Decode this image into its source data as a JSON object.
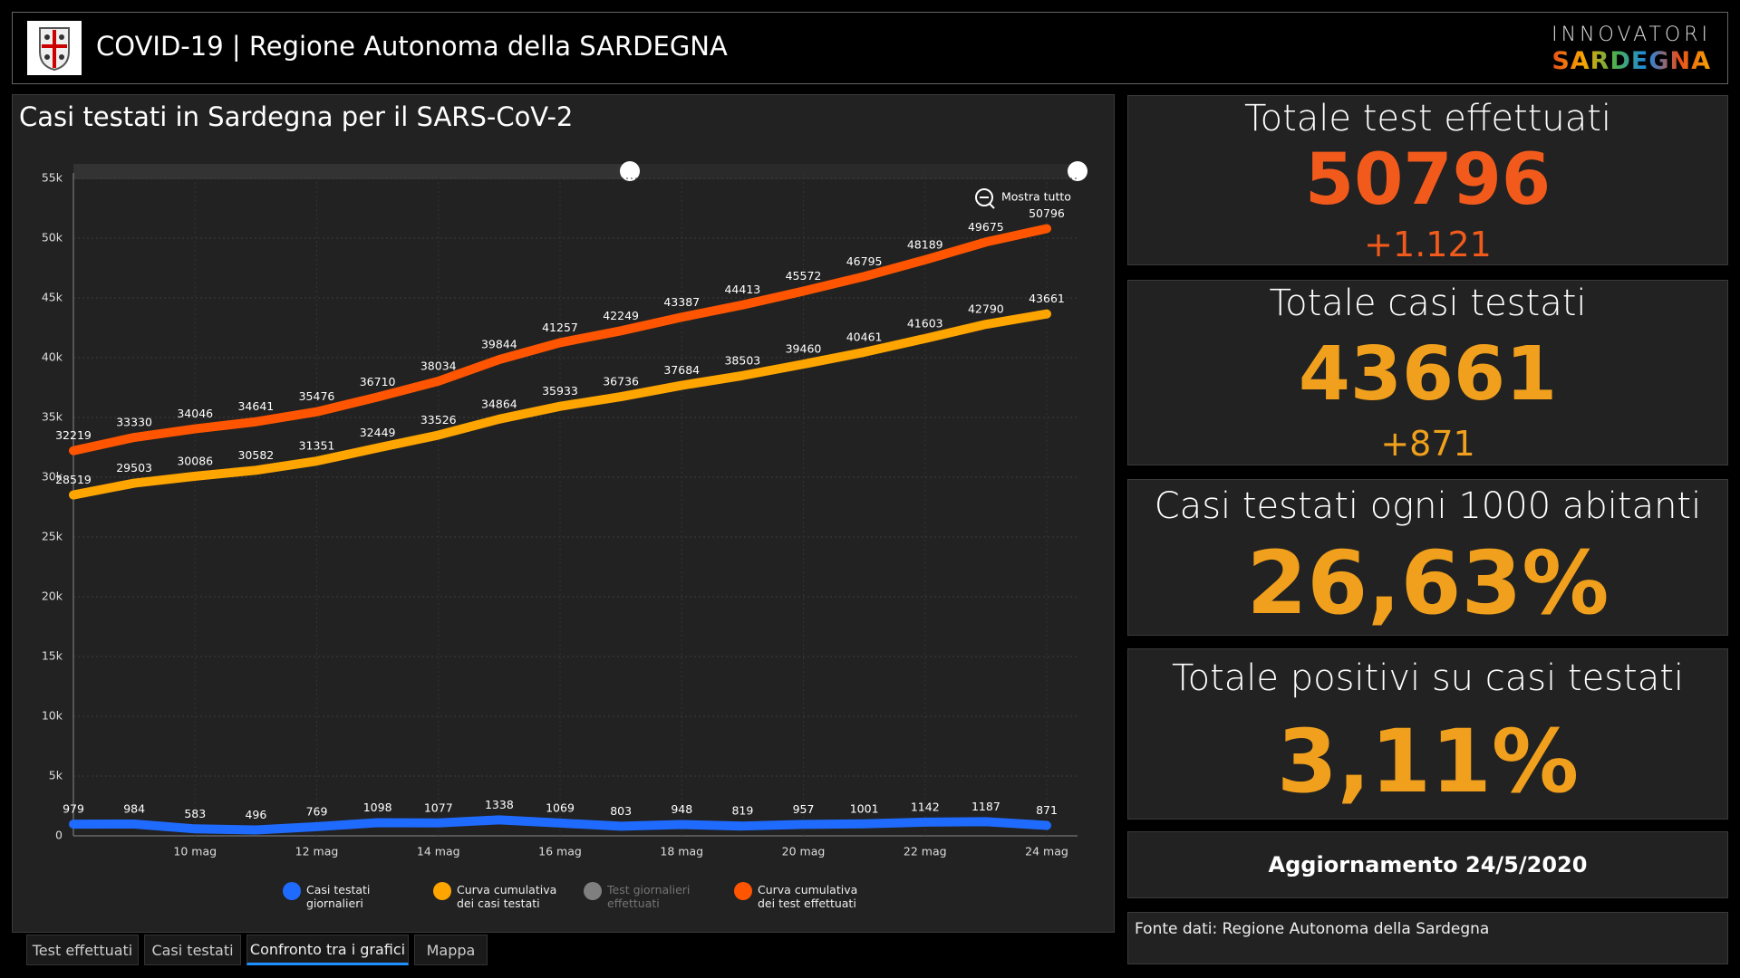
{
  "header": {
    "title": "COVID-19 | Regione Autonoma della SARDEGNA",
    "brand_top": "INNOVATORI",
    "brand_bottom": "SARDEGNA"
  },
  "chart_data": {
    "type": "line",
    "title": "Casi testati in Sardegna per il SARS-CoV-2",
    "zoom_label": "Mostra tutto",
    "categories": [
      null,
      null,
      "10 mag",
      null,
      "12 mag",
      null,
      "14 mag",
      null,
      "16 mag",
      null,
      "18 mag",
      null,
      "20 mag",
      null,
      "22 mag",
      null,
      "24 mag"
    ],
    "series": [
      {
        "name": "Casi testati giornalieri",
        "color": "#1f6bff",
        "values": [
          979,
          984,
          583,
          496,
          769,
          1098,
          1077,
          1338,
          1069,
          803,
          948,
          819,
          957,
          1001,
          1142,
          1187,
          871
        ]
      },
      {
        "name": "Curva cumulativa dei casi testati",
        "color": "#ffa500",
        "values": [
          28519,
          29503,
          30086,
          30582,
          31351,
          32449,
          33526,
          34864,
          35933,
          36736,
          37684,
          38503,
          39460,
          40461,
          41603,
          42790,
          43661
        ]
      },
      {
        "name": "Test giornalieri effettuati",
        "color": "#bdbdbd",
        "hidden": true,
        "values": [
          null,
          null,
          null,
          null,
          null,
          null,
          null,
          null,
          null,
          null,
          null,
          null,
          null,
          null,
          null,
          null,
          null
        ]
      },
      {
        "name": "Curva cumulativa dei test effettuati",
        "color": "#ff5500",
        "values": [
          32219,
          33330,
          34046,
          34641,
          35476,
          36710,
          38034,
          39844,
          41257,
          42249,
          43387,
          44413,
          45572,
          46795,
          48189,
          49675,
          50796
        ]
      }
    ],
    "ylim": [
      0,
      55000
    ],
    "yticks": [
      0,
      {
        "value": 5000,
        "label": "5k"
      },
      {
        "value": 10000,
        "label": "10k"
      },
      {
        "value": 15000,
        "label": "15k"
      },
      {
        "value": 20000,
        "label": "20k"
      },
      {
        "value": 25000,
        "label": "25k"
      },
      {
        "value": 30000,
        "label": "30k"
      },
      {
        "value": 35000,
        "label": "35k"
      },
      {
        "value": 40000,
        "label": "40k"
      },
      {
        "value": 45000,
        "label": "45k"
      },
      {
        "value": 50000,
        "label": "50k"
      },
      {
        "value": 55000,
        "label": "55k"
      }
    ],
    "grid": true
  },
  "kpis": [
    {
      "title": "Totale test effettuati",
      "value": "50796",
      "delta": "+1.121",
      "color": "#f25a1c"
    },
    {
      "title": "Totale casi testati",
      "value": "43661",
      "delta": "+871",
      "color": "#f0a01c"
    },
    {
      "title": "Casi testati ogni 1000 abitanti",
      "value": "26,63%",
      "color": "#f0a01c"
    },
    {
      "title": "Totale positivi su casi testati",
      "value": "3,11%",
      "color": "#f0a01c"
    }
  ],
  "updated": "Aggiornamento 24/5/2020",
  "source": "Fonte dati: Regione Autonoma della Sardegna",
  "tabs": [
    "Test effettuati",
    "Casi testati",
    "Confronto tra i grafici",
    "Mappa"
  ]
}
